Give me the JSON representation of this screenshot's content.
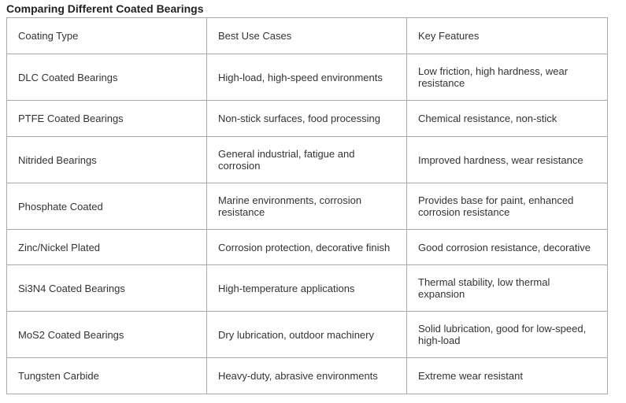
{
  "title": "Comparing Different Coated Bearings",
  "table": {
    "headers": [
      "Coating Type",
      "Best Use Cases",
      "Key Features"
    ],
    "rows": [
      [
        "DLC Coated Bearings",
        "High-load, high-speed environments",
        "Low friction, high hardness, wear resistance"
      ],
      [
        "PTFE Coated Bearings",
        "Non-stick surfaces, food processing",
        "Chemical resistance, non-stick"
      ],
      [
        "Nitrided Bearings",
        "General industrial, fatigue and corrosion",
        "Improved hardness, wear resistance"
      ],
      [
        "Phosphate Coated",
        "Marine environments, corrosion resistance",
        "Provides base for paint, enhanced corrosion resistance"
      ],
      [
        "Zinc/Nickel Plated",
        "Corrosion protection, decorative finish",
        "Good corrosion resistance, decorative"
      ],
      [
        "Si3N4 Coated Bearings",
        "High-temperature applications",
        "Thermal stability, low thermal expansion"
      ],
      [
        "MoS2 Coated Bearings",
        "Dry lubrication, outdoor machinery",
        "Solid lubrication, good for low-speed, high-load"
      ],
      [
        "Tungsten Carbide",
        "Heavy-duty, abrasive environments",
        "Extreme wear resistant"
      ]
    ]
  }
}
